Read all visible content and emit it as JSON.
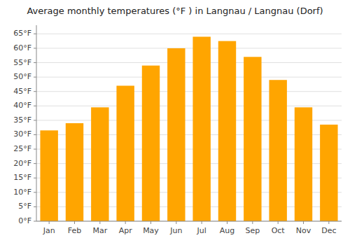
{
  "chart_data": {
    "type": "bar",
    "title": "Average monthly temperatures (°F ) in Langnau / Langnau (Dorf)",
    "categories": [
      "Jan",
      "Feb",
      "Mar",
      "Apr",
      "May",
      "Jun",
      "Jul",
      "Aug",
      "Sep",
      "Oct",
      "Nov",
      "Dec"
    ],
    "values": [
      31.5,
      34.0,
      39.5,
      47.0,
      54.0,
      60.0,
      64.0,
      62.5,
      57.0,
      49.0,
      39.5,
      33.5
    ],
    "color": "#FFA500",
    "ylim": [
      0,
      68
    ],
    "yticks": [
      {
        "value": 0,
        "label": "0°F"
      },
      {
        "value": 5,
        "label": "5°F"
      },
      {
        "value": 10,
        "label": "10°F"
      },
      {
        "value": 15,
        "label": "15°F"
      },
      {
        "value": 20,
        "label": "20°F"
      },
      {
        "value": 25,
        "label": "25°F"
      },
      {
        "value": 30,
        "label": "30°F"
      },
      {
        "value": 35,
        "label": "35°F"
      },
      {
        "value": 40,
        "label": "40°F"
      },
      {
        "value": 45,
        "label": "45°F"
      },
      {
        "value": 50,
        "label": "50°F"
      },
      {
        "value": 55,
        "label": "55°F"
      },
      {
        "value": 60,
        "label": "60°F"
      },
      {
        "value": 65,
        "label": "65°F"
      }
    ],
    "grid": true
  }
}
